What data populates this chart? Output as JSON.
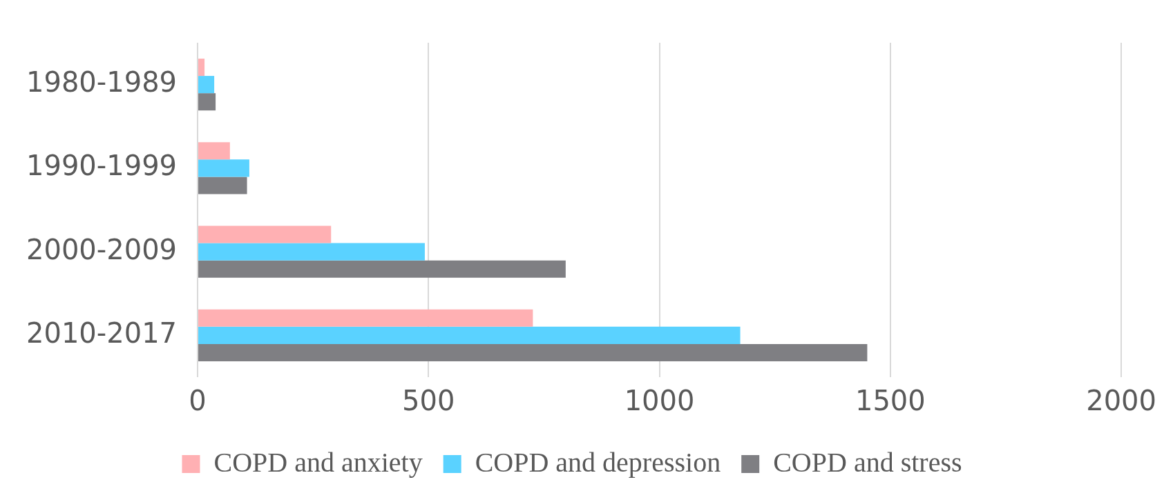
{
  "chart_data": {
    "type": "bar",
    "orientation": "horizontal",
    "categories": [
      "1980-1989",
      "1990-1999",
      "2000-2009",
      "2010-2017"
    ],
    "series": [
      {
        "name": "COPD and anxiety",
        "color": "#ffb0b3",
        "values": [
          15,
          70,
          289,
          726
        ]
      },
      {
        "name": "COPD and depression",
        "color": "#5ad2ff",
        "values": [
          36,
          112,
          492,
          1175
        ]
      },
      {
        "name": "COPD and stress",
        "color": "#7f7f83",
        "values": [
          39,
          107,
          797,
          1450
        ]
      }
    ],
    "xlim": [
      0,
      2000
    ],
    "xticks": [
      0,
      500,
      1000,
      1500,
      2000
    ],
    "grid": "x",
    "legend": "bottom"
  }
}
